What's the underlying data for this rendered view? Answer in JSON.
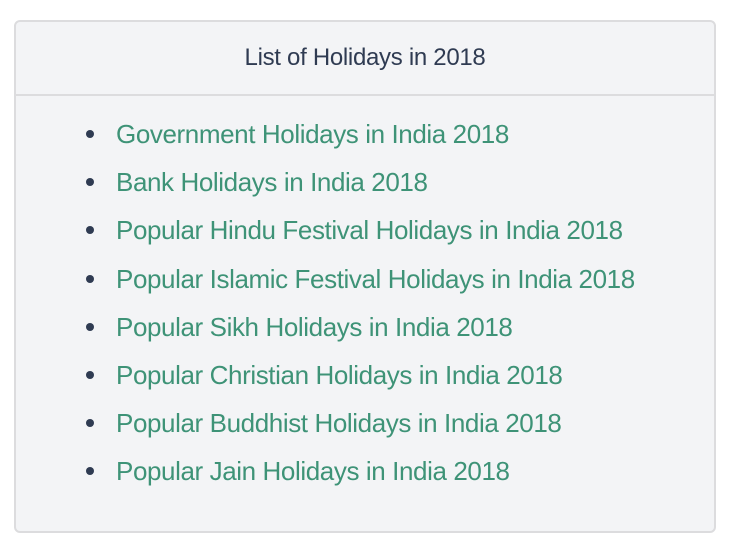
{
  "panel": {
    "title": "List of Holidays in 2018",
    "items": [
      {
        "label": "Government Holidays in India 2018"
      },
      {
        "label": "Bank Holidays in India 2018"
      },
      {
        "label": "Popular Hindu Festival Holidays in India 2018"
      },
      {
        "label": "Popular Islamic Festival Holidays in India 2018"
      },
      {
        "label": "Popular Sikh Holidays in India 2018"
      },
      {
        "label": "Popular Christian Holidays in India 2018"
      },
      {
        "label": "Popular Buddhist Holidays in India 2018"
      },
      {
        "label": "Popular Jain Holidays in India 2018"
      }
    ]
  },
  "colors": {
    "link": "#3e9377",
    "heading": "#2f3b52",
    "background": "#f3f4f6",
    "border": "#dcdcde"
  }
}
